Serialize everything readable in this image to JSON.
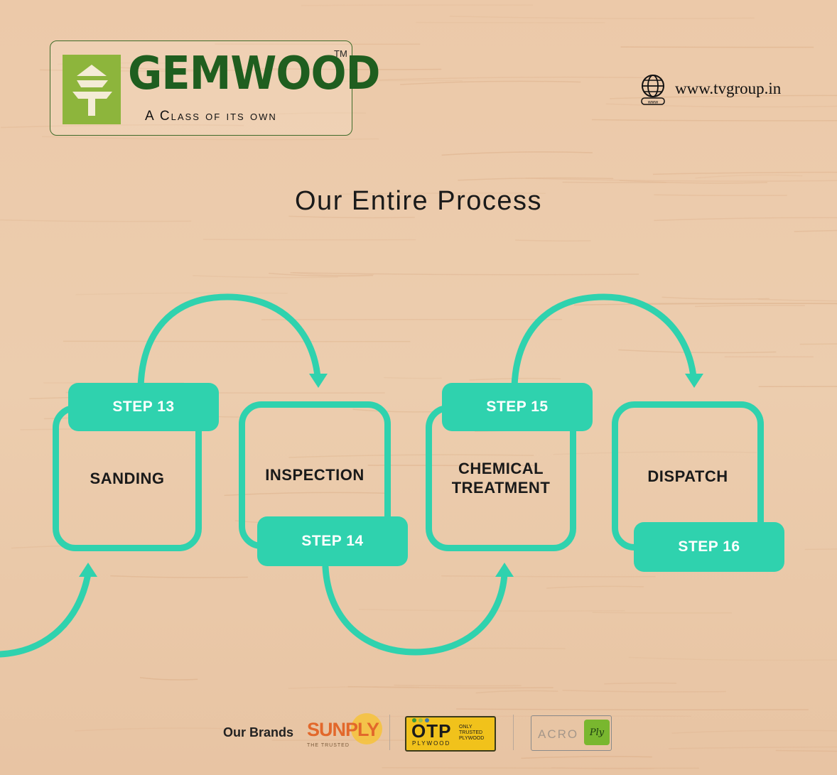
{
  "brand": {
    "name": "GEMWOOD",
    "trademark": "TM",
    "tagline": "A Class of its own"
  },
  "website": "www.tvgroup.in",
  "title": "Our Entire Process",
  "steps": [
    {
      "step": "STEP 13",
      "name": "SANDING"
    },
    {
      "step": "STEP 14",
      "name": "INSPECTION"
    },
    {
      "step": "STEP 15",
      "name_line1": "CHEMICAL",
      "name_line2": "TREATMENT"
    },
    {
      "step": "STEP 16",
      "name": "DISPATCH"
    }
  ],
  "footer": {
    "label": "Our Brands",
    "brands": [
      {
        "name": "SUNPLY",
        "tagline": "THE TRUSTED"
      },
      {
        "name": "OTP",
        "sub": "PLYWOOD",
        "side": "ONLY TRUSTED PLYWOOD"
      },
      {
        "name": "ACRO",
        "badge": "Ply"
      }
    ]
  },
  "colors": {
    "accent": "#2fd2ae",
    "wood": "#e9c7a8",
    "logo_green": "#1f5e1f"
  }
}
